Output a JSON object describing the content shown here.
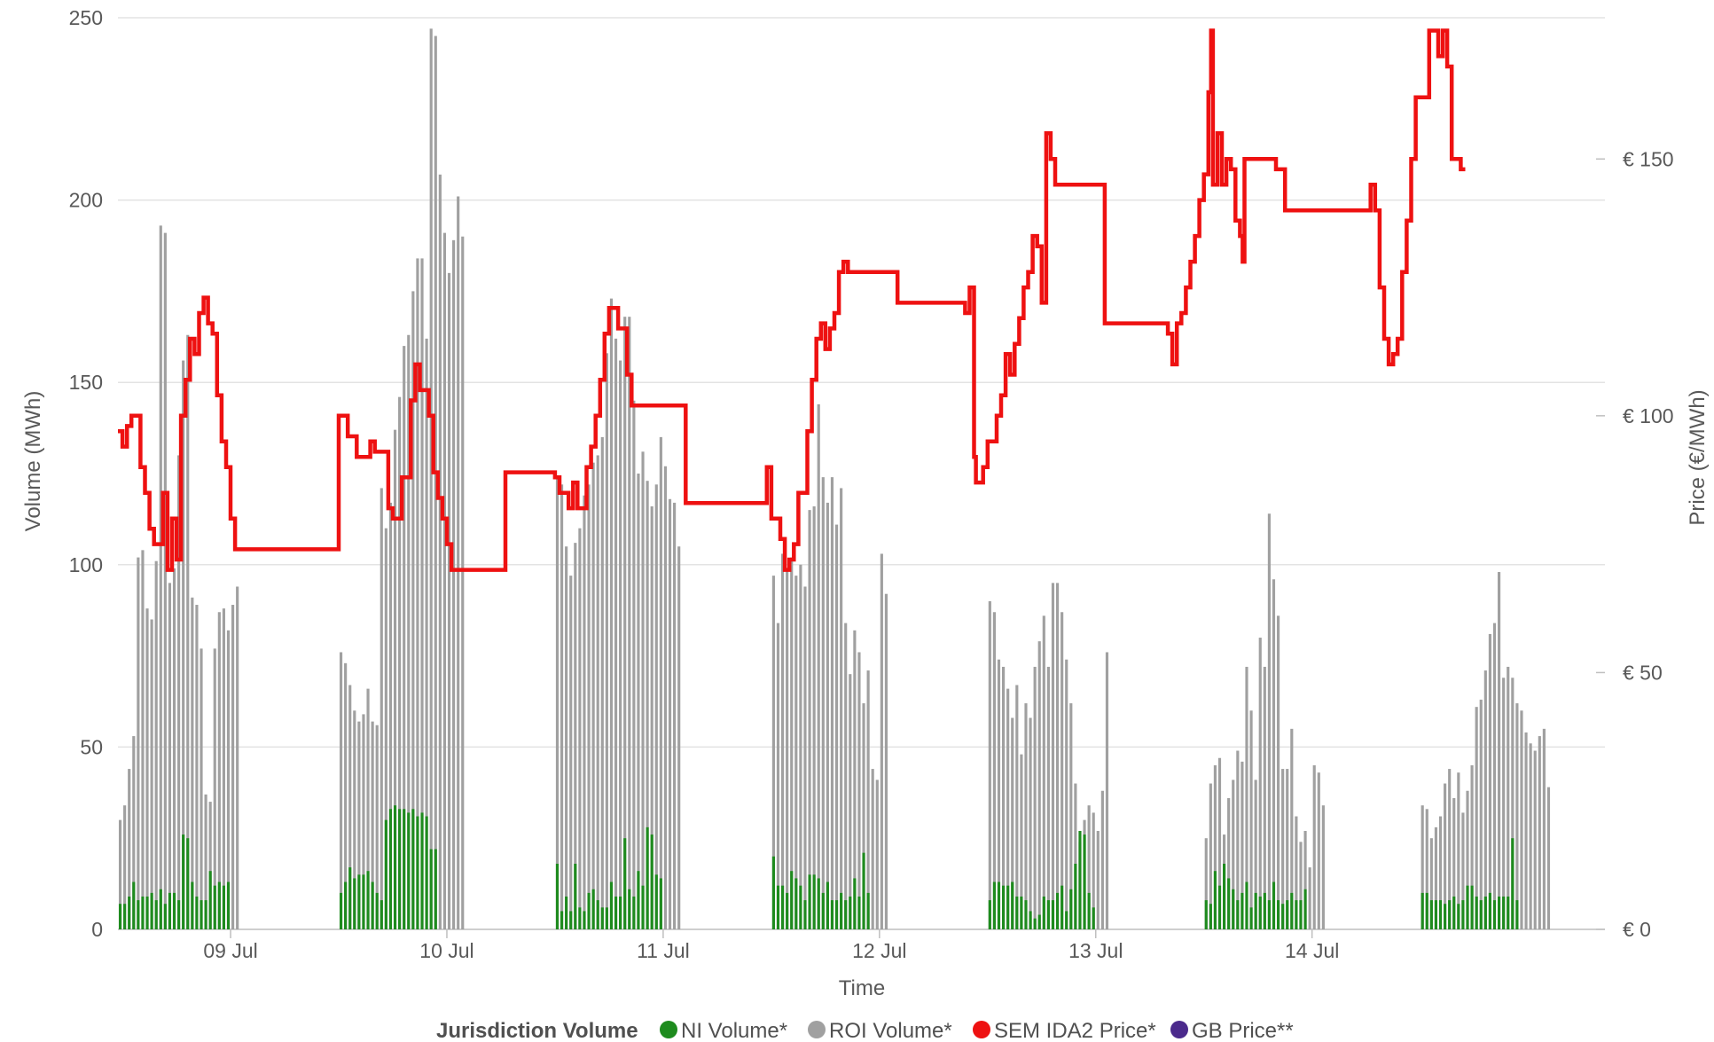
{
  "chart_data": {
    "type": "bar",
    "title": "",
    "xlabel": "Time",
    "ylabel_left": "Volume (MWh)",
    "ylabel_right": "Price (€/MWh)",
    "ylim_left": [
      0,
      250
    ],
    "ylim_right": [
      0,
      177.5
    ],
    "grid": true,
    "legend_position": "bottom-center",
    "legend_title": "Jurisdiction Volume",
    "x_ticks": [
      "09 Jul",
      "10 Jul",
      "11 Jul",
      "12 Jul",
      "13 Jul",
      "14 Jul"
    ],
    "y_ticks_left": [
      "0",
      "50",
      "100",
      "150",
      "200",
      "250"
    ],
    "y_ticks_right": [
      "€ 0",
      "€ 50",
      "€ 100",
      "€ 150"
    ],
    "x_hours": [
      -12.5,
      152.5
    ],
    "colors": {
      "ni": "#1e8b1e",
      "roi": "#a0a0a0",
      "sem": "#ee1111",
      "gb": "#4b2a8c",
      "grid": "#e3e3e3",
      "axis": "#bfbfbf"
    },
    "series": [
      {
        "name": "NI Volume*",
        "key": "ni",
        "type": "bar"
      },
      {
        "name": "ROI Volume*",
        "key": "roi",
        "type": "bar"
      },
      {
        "name": "SEM IDA2 Price*",
        "key": "sem",
        "type": "line"
      },
      {
        "name": "GB Price**",
        "key": "gb",
        "type": "line"
      }
    ],
    "volume_blocks": [
      {
        "start_hour": -12.5,
        "roi": [
          30,
          34,
          44,
          53,
          102,
          104,
          88,
          85,
          101,
          193,
          191,
          95,
          99,
          130,
          156,
          163,
          91,
          89,
          77,
          37,
          35,
          77,
          87,
          88,
          82,
          89,
          94
        ],
        "ni": [
          7,
          7,
          9,
          13,
          8,
          9,
          9,
          10,
          8,
          11,
          7,
          10,
          10,
          8,
          26,
          25,
          13,
          9,
          8,
          8,
          16,
          12,
          13,
          12,
          13
        ]
      },
      {
        "start_hour": 12,
        "roi": [
          76,
          73,
          67,
          60,
          57,
          59,
          66,
          57,
          56,
          121,
          110,
          117,
          137,
          146,
          160,
          163,
          175,
          184,
          184,
          162,
          247,
          245,
          207,
          191,
          180,
          189,
          201,
          190
        ],
        "ni": [
          10,
          13,
          17,
          14,
          15,
          15,
          16,
          13,
          10,
          8,
          30,
          33,
          34,
          33,
          33,
          32,
          33,
          31,
          32,
          31,
          22,
          22
        ]
      },
      {
        "start_hour": 36,
        "roi": [
          124,
          122,
          105,
          97,
          106,
          110,
          119,
          122,
          128,
          130,
          135,
          158,
          173,
          162,
          156,
          168,
          168,
          145,
          125,
          131,
          123,
          116,
          122,
          135,
          127,
          118,
          117,
          105
        ],
        "ni": [
          18,
          5,
          9,
          5,
          18,
          6,
          5,
          10,
          11,
          8,
          6,
          6,
          13,
          9,
          9,
          25,
          11,
          9,
          16,
          12,
          28,
          26,
          15,
          14
        ]
      },
      {
        "start_hour": 60,
        "roi": [
          97,
          84,
          103,
          99,
          102,
          97,
          100,
          94,
          115,
          116,
          144,
          124,
          117,
          124,
          111,
          121,
          84,
          70,
          82,
          76,
          62,
          71,
          44,
          41,
          103,
          92
        ],
        "ni": [
          20,
          12,
          12,
          10,
          16,
          14,
          12,
          8,
          15,
          15,
          14,
          10,
          13,
          8,
          8,
          10,
          8,
          9,
          14,
          9,
          21,
          10
        ]
      },
      {
        "start_hour": 84,
        "roi": [
          90,
          87,
          74,
          72,
          66,
          58,
          67,
          48,
          62,
          58,
          72,
          79,
          86,
          72,
          95,
          95,
          87,
          74,
          62,
          40,
          24,
          30,
          34,
          32,
          27,
          38,
          76
        ],
        "ni": [
          8,
          13,
          13,
          12,
          12,
          13,
          9,
          9,
          8,
          5,
          3,
          4,
          9,
          8,
          8,
          10,
          12,
          5,
          11,
          18,
          27,
          26,
          10,
          6
        ]
      },
      {
        "start_hour": 108,
        "roi": [
          25,
          40,
          45,
          47,
          26,
          36,
          41,
          49,
          46,
          72,
          60,
          41,
          80,
          72,
          114,
          96,
          86,
          44,
          44,
          55,
          31,
          24,
          27,
          17,
          45,
          43,
          34
        ],
        "ni": [
          8,
          7,
          16,
          12,
          18,
          14,
          11,
          8,
          10,
          13,
          6,
          10,
          9,
          10,
          8,
          13,
          8,
          7,
          8,
          10,
          8,
          8,
          11
        ]
      },
      {
        "start_hour": 132,
        "roi": [
          34,
          33,
          25,
          28,
          31,
          40,
          44,
          36,
          43,
          32,
          38,
          45,
          61,
          63,
          71,
          81,
          84,
          98,
          69,
          72,
          69,
          62,
          60,
          54,
          51,
          49,
          53,
          55,
          39
        ],
        "ni": [
          10,
          10,
          8,
          8,
          8,
          7,
          8,
          9,
          7,
          8,
          12,
          12,
          9,
          8,
          9,
          10,
          8,
          9,
          9,
          9,
          25,
          8
        ]
      }
    ],
    "sem_price": [
      [
        -12.5,
        97
      ],
      [
        -12.0,
        94
      ],
      [
        -11.5,
        98
      ],
      [
        -11.0,
        100
      ],
      [
        -10.0,
        90
      ],
      [
        -9.5,
        85
      ],
      [
        -9.0,
        78
      ],
      [
        -8.5,
        75
      ],
      [
        -7.5,
        85
      ],
      [
        -7.0,
        70
      ],
      [
        -6.5,
        80
      ],
      [
        -6.0,
        72
      ],
      [
        -5.5,
        100
      ],
      [
        -5.0,
        107
      ],
      [
        -4.5,
        115
      ],
      [
        -4.0,
        112
      ],
      [
        -3.5,
        120
      ],
      [
        -3.0,
        123
      ],
      [
        -2.5,
        118
      ],
      [
        -2.0,
        116
      ],
      [
        -1.5,
        104
      ],
      [
        -1.0,
        95
      ],
      [
        -0.5,
        90
      ],
      [
        0.0,
        80
      ],
      [
        0.5,
        74
      ],
      [
        4.5,
        74
      ],
      [
        12.0,
        100
      ],
      [
        13.0,
        96
      ],
      [
        14.0,
        92
      ],
      [
        15.5,
        95
      ],
      [
        16.0,
        93
      ],
      [
        17.5,
        82
      ],
      [
        18.0,
        80
      ],
      [
        19.0,
        88
      ],
      [
        20.0,
        103
      ],
      [
        20.5,
        110
      ],
      [
        21.0,
        105
      ],
      [
        22.0,
        100
      ],
      [
        22.5,
        89
      ],
      [
        23.0,
        84
      ],
      [
        23.5,
        80
      ],
      [
        24.0,
        75
      ],
      [
        24.5,
        70
      ],
      [
        30.0,
        70
      ],
      [
        30.5,
        89
      ],
      [
        35.5,
        89
      ],
      [
        36.0,
        88
      ],
      [
        36.5,
        85
      ],
      [
        37.5,
        82
      ],
      [
        38.0,
        87
      ],
      [
        38.5,
        82
      ],
      [
        39.5,
        90
      ],
      [
        40.0,
        94
      ],
      [
        40.5,
        100
      ],
      [
        41.0,
        107
      ],
      [
        41.5,
        116
      ],
      [
        42.0,
        121
      ],
      [
        43.0,
        117
      ],
      [
        44.0,
        108
      ],
      [
        44.5,
        102
      ],
      [
        48.0,
        102
      ],
      [
        50.0,
        102
      ],
      [
        50.5,
        83
      ],
      [
        53.5,
        83
      ],
      [
        58.0,
        83
      ],
      [
        59.5,
        90
      ],
      [
        60.0,
        80
      ],
      [
        61.0,
        76
      ],
      [
        61.5,
        70
      ],
      [
        62.0,
        72
      ],
      [
        62.5,
        75
      ],
      [
        63.0,
        85
      ],
      [
        64.0,
        97
      ],
      [
        64.5,
        107
      ],
      [
        65.0,
        115
      ],
      [
        65.5,
        118
      ],
      [
        66.0,
        113
      ],
      [
        66.5,
        117
      ],
      [
        67.0,
        120
      ],
      [
        67.5,
        128
      ],
      [
        68.0,
        130
      ],
      [
        68.5,
        128
      ],
      [
        69.0,
        128
      ],
      [
        74.0,
        122
      ],
      [
        81.0,
        122
      ],
      [
        81.5,
        120
      ],
      [
        82.0,
        125
      ],
      [
        82.5,
        92
      ],
      [
        82.7,
        87
      ],
      [
        83.0,
        87
      ],
      [
        83.5,
        90
      ],
      [
        84.0,
        95
      ],
      [
        85.0,
        100
      ],
      [
        85.5,
        104
      ],
      [
        86.0,
        112
      ],
      [
        86.5,
        108
      ],
      [
        87.0,
        114
      ],
      [
        87.5,
        119
      ],
      [
        88.0,
        125
      ],
      [
        88.5,
        128
      ],
      [
        89.0,
        135
      ],
      [
        89.5,
        133
      ],
      [
        90.0,
        122
      ],
      [
        90.5,
        155
      ],
      [
        91.0,
        150
      ],
      [
        91.5,
        145
      ],
      [
        96.0,
        145
      ],
      [
        97.0,
        118
      ],
      [
        103.5,
        118
      ],
      [
        104.0,
        116
      ],
      [
        104.5,
        110
      ],
      [
        105.0,
        118
      ],
      [
        105.5,
        120
      ],
      [
        106.0,
        125
      ],
      [
        106.5,
        130
      ],
      [
        107.0,
        135
      ],
      [
        107.5,
        142
      ],
      [
        108.0,
        147
      ],
      [
        108.5,
        163
      ],
      [
        108.8,
        175
      ],
      [
        109.0,
        145
      ],
      [
        109.5,
        155
      ],
      [
        110.0,
        145
      ],
      [
        110.5,
        150
      ],
      [
        111.0,
        148
      ],
      [
        111.5,
        138
      ],
      [
        112.0,
        135
      ],
      [
        112.3,
        130
      ],
      [
        112.5,
        150
      ],
      [
        116.0,
        148
      ],
      [
        117.0,
        140
      ],
      [
        126.0,
        140
      ],
      [
        126.5,
        145
      ],
      [
        127.0,
        140
      ],
      [
        127.5,
        125
      ],
      [
        128.0,
        115
      ],
      [
        128.5,
        110
      ],
      [
        129.0,
        112
      ],
      [
        129.5,
        115
      ],
      [
        130.0,
        128
      ],
      [
        130.5,
        138
      ],
      [
        131.0,
        150
      ],
      [
        131.5,
        162
      ],
      [
        132.0,
        162
      ],
      [
        133.0,
        175
      ],
      [
        133.5,
        175
      ],
      [
        134.0,
        170
      ],
      [
        134.5,
        175
      ],
      [
        135.0,
        168
      ],
      [
        135.5,
        150
      ],
      [
        136.0,
        150
      ],
      [
        136.5,
        148
      ]
    ]
  }
}
